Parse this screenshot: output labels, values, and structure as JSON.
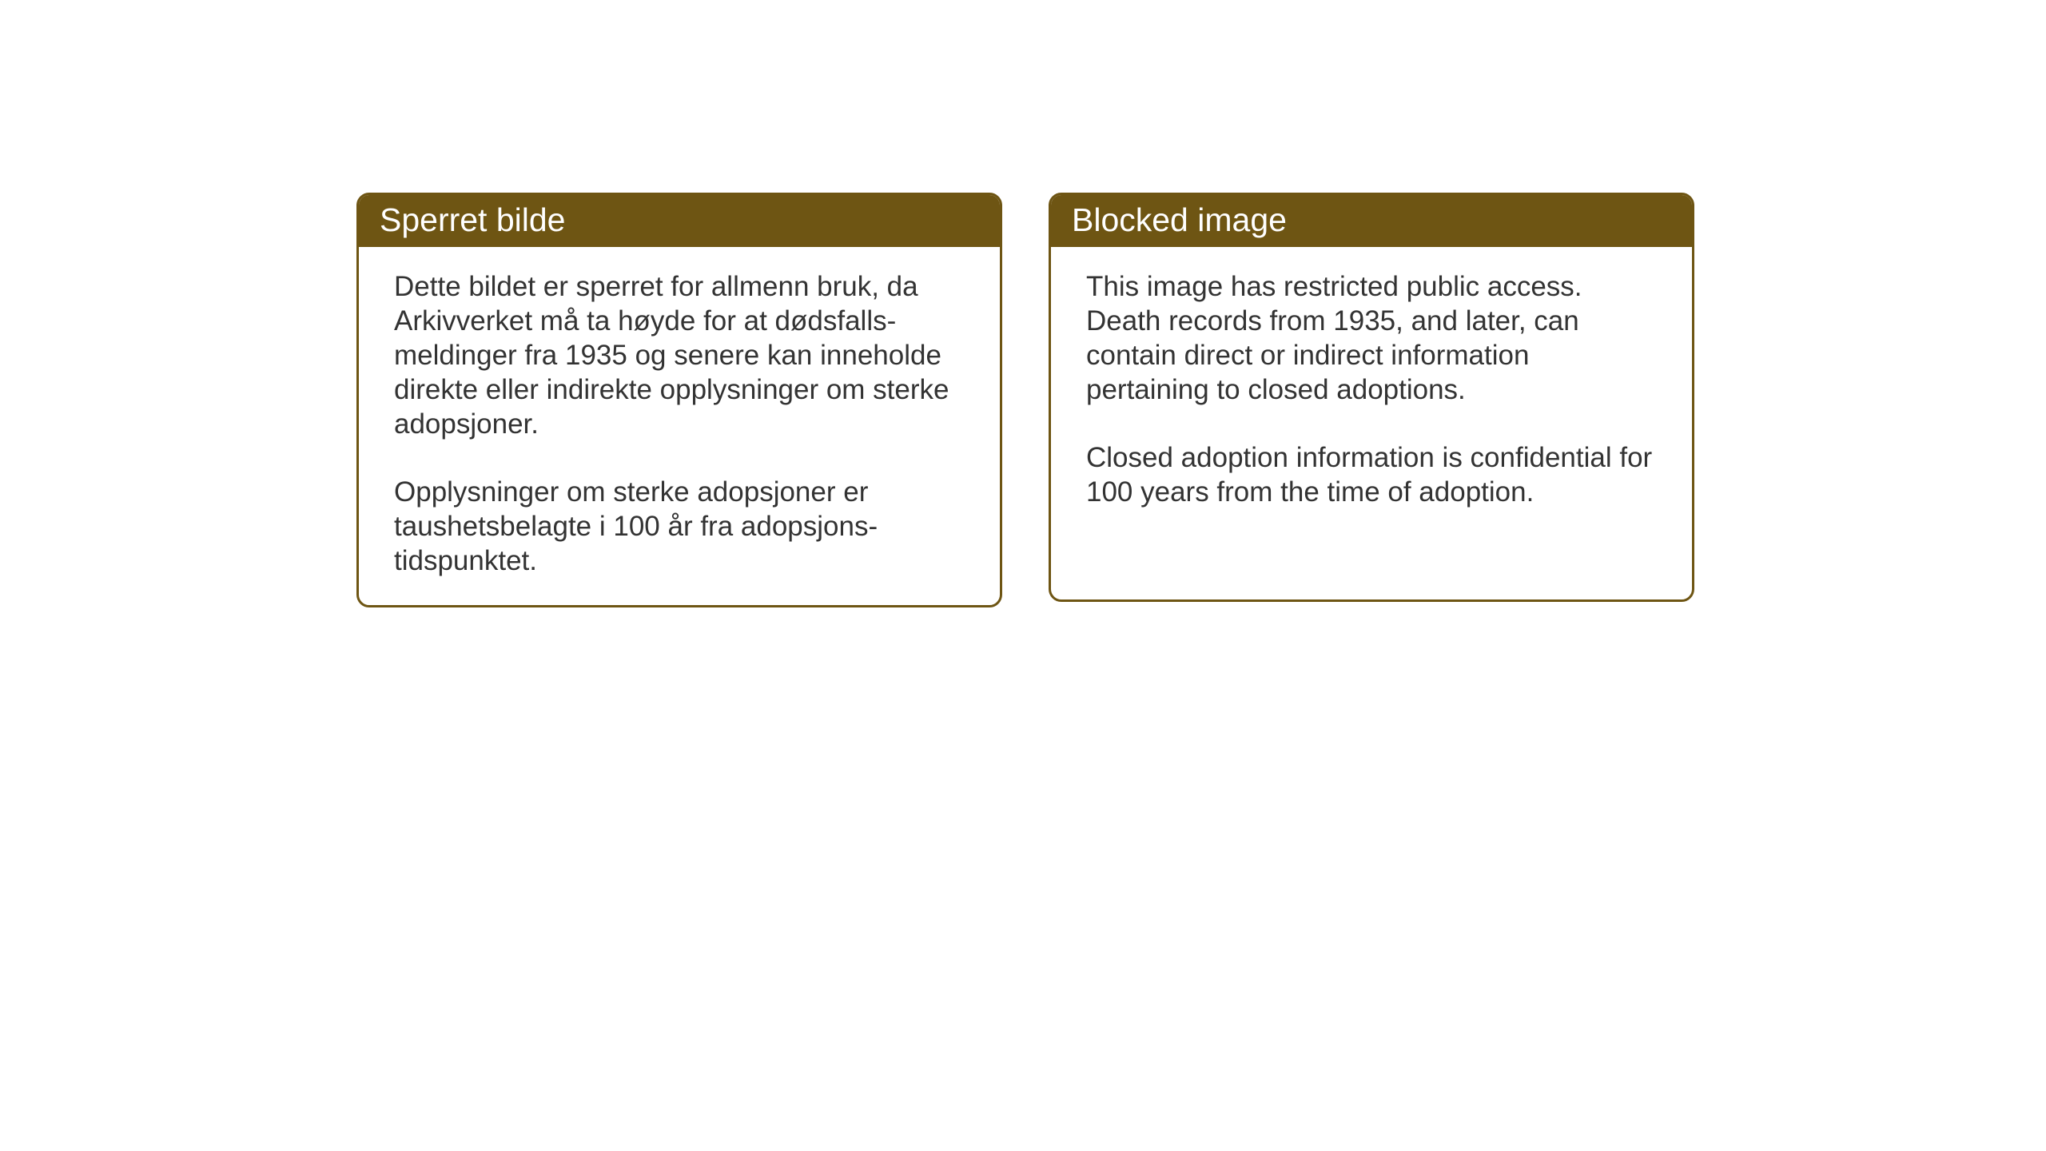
{
  "layout": {
    "background_color": "#ffffff",
    "card_border_color": "#6e5513",
    "card_header_bg": "#6e5513",
    "card_header_text_color": "#ffffff",
    "card_body_text_color": "#333333",
    "header_fontsize": 41,
    "body_fontsize": 35,
    "border_radius": 16,
    "border_width": 3
  },
  "card_left": {
    "title": "Sperret bilde",
    "paragraph1": "Dette bildet er sperret for allmenn bruk, da Arkivverket må ta høyde for at dødsfalls­meldinger fra 1935 og senere kan inneholde direkte eller indirekte opplysninger om sterke adopsjoner.",
    "paragraph2": "Opplysninger om sterke adopsjoner er taushetsbelagte i 100 år fra adopsjons­tidspunktet."
  },
  "card_right": {
    "title": "Blocked image",
    "paragraph1": "This image has restricted public access. Death records from 1935, and later, can contain direct or indirect information pertaining to closed adoptions.",
    "paragraph2": "Closed adoption information is confidential for 100 years from the time of adoption."
  }
}
